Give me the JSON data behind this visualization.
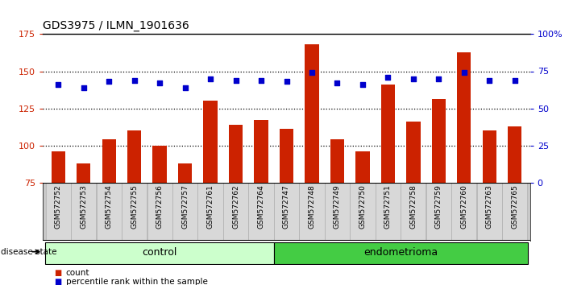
{
  "title": "GDS3975 / ILMN_1901636",
  "samples": [
    "GSM572752",
    "GSM572753",
    "GSM572754",
    "GSM572755",
    "GSM572756",
    "GSM572757",
    "GSM572761",
    "GSM572762",
    "GSM572764",
    "GSM572747",
    "GSM572748",
    "GSM572749",
    "GSM572750",
    "GSM572751",
    "GSM572758",
    "GSM572759",
    "GSM572760",
    "GSM572763",
    "GSM572765"
  ],
  "bar_values": [
    96,
    88,
    104,
    110,
    100,
    88,
    130,
    114,
    117,
    111,
    168,
    104,
    96,
    141,
    116,
    131,
    163,
    110,
    113
  ],
  "dot_pct": [
    66,
    64,
    68,
    69,
    67,
    64,
    70,
    69,
    69,
    68,
    74,
    67,
    66,
    71,
    70,
    70,
    74,
    69,
    69
  ],
  "ylim_left": [
    75,
    175
  ],
  "ylim_right": [
    0,
    100
  ],
  "yticks_left": [
    75,
    100,
    125,
    150,
    175
  ],
  "yticks_right": [
    0,
    25,
    50,
    75,
    100
  ],
  "bar_color": "#cc2200",
  "dot_color": "#0000cc",
  "bg_color": "#ffffff",
  "control_count": 9,
  "endometrioma_count": 10,
  "control_label": "control",
  "endometrioma_label": "endometrioma",
  "disease_state_label": "disease state",
  "legend_count_label": "count",
  "legend_percentile_label": "percentile rank within the sample",
  "control_area_color": "#ccffcc",
  "endometrioma_area_color": "#44cc44",
  "tick_fontsize": 6.5,
  "axis_fontsize": 8
}
